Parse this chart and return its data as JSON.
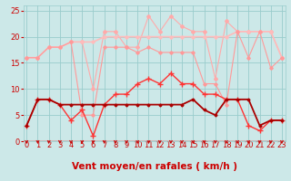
{
  "bg_color": "#cce8e8",
  "grid_color": "#99cccc",
  "xlabel": "Vent moyen/en rafales ( km/h )",
  "xlabel_color": "#cc0000",
  "xlabel_fontsize": 7.5,
  "tick_color": "#cc0000",
  "tick_fontsize": 6,
  "xlim": [
    -0.3,
    23.3
  ],
  "ylim": [
    0,
    26
  ],
  "yticks": [
    0,
    5,
    10,
    15,
    20,
    25
  ],
  "x": [
    0,
    1,
    2,
    3,
    4,
    5,
    6,
    7,
    8,
    9,
    10,
    11,
    12,
    13,
    14,
    15,
    16,
    17,
    18,
    19,
    20,
    21,
    22,
    23
  ],
  "series": [
    {
      "color": "#ffaaaa",
      "lw": 0.8,
      "marker": "D",
      "ms": 2.0,
      "y": [
        16,
        16,
        18,
        18,
        19,
        19,
        10,
        21,
        21,
        18,
        18,
        24,
        21,
        24,
        22,
        21,
        21,
        12,
        23,
        21,
        21,
        21,
        21,
        16
      ]
    },
    {
      "color": "#ffbbbb",
      "lw": 1.2,
      "marker": "D",
      "ms": 1.8,
      "y": [
        16,
        16,
        18,
        18,
        19,
        19,
        19,
        20,
        20,
        20,
        20,
        20,
        20,
        20,
        20,
        20,
        20,
        20,
        20,
        21,
        21,
        21,
        21,
        16
      ]
    },
    {
      "color": "#ff9999",
      "lw": 0.8,
      "marker": "D",
      "ms": 1.8,
      "y": [
        16,
        16,
        18,
        18,
        19,
        5,
        5,
        18,
        18,
        18,
        17,
        18,
        17,
        17,
        17,
        17,
        11,
        11,
        7,
        21,
        16,
        21,
        14,
        16
      ]
    },
    {
      "color": "#ff3333",
      "lw": 1.0,
      "marker": "+",
      "ms": 4,
      "y": [
        3,
        8,
        8,
        7,
        4,
        6,
        1,
        7,
        9,
        9,
        11,
        12,
        11,
        13,
        11,
        11,
        9,
        9,
        8,
        8,
        3,
        2,
        4,
        4
      ]
    },
    {
      "color": "#aa0000",
      "lw": 1.3,
      "marker": "D",
      "ms": 1.5,
      "y": [
        3,
        8,
        8,
        7,
        7,
        7,
        7,
        7,
        7,
        7,
        7,
        7,
        7,
        7,
        7,
        8,
        6,
        5,
        8,
        8,
        8,
        3,
        4,
        4
      ]
    }
  ],
  "arrow_color": "#cc0000",
  "arrow_size": 5
}
